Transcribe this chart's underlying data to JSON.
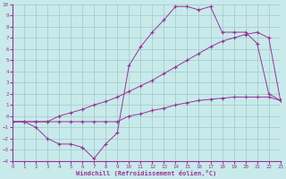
{
  "background_color": "#c8eaea",
  "grid_color": "#a0c8c8",
  "line_color": "#993399",
  "xlabel": "Windchill (Refroidissement éolien,°C)",
  "xlim": [
    0,
    23
  ],
  "ylim": [
    -4,
    10
  ],
  "xticks": [
    0,
    1,
    2,
    3,
    4,
    5,
    6,
    7,
    8,
    9,
    10,
    11,
    12,
    13,
    14,
    15,
    16,
    17,
    18,
    19,
    20,
    21,
    22,
    23
  ],
  "yticks": [
    -4,
    -3,
    -2,
    -1,
    0,
    1,
    2,
    3,
    4,
    5,
    6,
    7,
    8,
    9,
    10
  ],
  "curve1_x": [
    0,
    1,
    2,
    3,
    4,
    5,
    6,
    7,
    8,
    9,
    10,
    11,
    12,
    13,
    14,
    15,
    16,
    17,
    18,
    19,
    20,
    21,
    22,
    23
  ],
  "curve1_y": [
    -0.5,
    -0.5,
    -0.5,
    -0.5,
    -0.5,
    -0.5,
    -0.5,
    -0.5,
    -0.5,
    -0.5,
    0.0,
    0.2,
    0.5,
    0.7,
    1.0,
    1.2,
    1.4,
    1.5,
    1.6,
    1.7,
    1.7,
    1.7,
    1.7,
    1.4
  ],
  "curve2_x": [
    0,
    1,
    2,
    3,
    4,
    5,
    6,
    7,
    8,
    9,
    10,
    11,
    12,
    13,
    14,
    15,
    16,
    17,
    18,
    19,
    20,
    21,
    22,
    23
  ],
  "curve2_y": [
    -0.5,
    -0.5,
    -0.5,
    -0.5,
    0.0,
    0.3,
    0.6,
    1.0,
    1.3,
    1.7,
    2.2,
    2.7,
    3.2,
    3.8,
    4.4,
    5.0,
    5.6,
    6.2,
    6.7,
    7.0,
    7.3,
    7.5,
    7.0,
    1.4
  ],
  "curve3_x": [
    0,
    1,
    2,
    3,
    4,
    5,
    6,
    7,
    8,
    9,
    10,
    11,
    12,
    13,
    14,
    15,
    16,
    17,
    18,
    19,
    20,
    21,
    22,
    23
  ],
  "curve3_y": [
    -0.5,
    -0.5,
    -1.0,
    -2.0,
    -2.5,
    -2.5,
    -2.8,
    -3.8,
    -2.5,
    -1.5,
    4.5,
    6.2,
    7.5,
    8.6,
    9.8,
    9.8,
    9.5,
    9.8,
    7.5,
    7.5,
    7.5,
    6.5,
    2.0,
    1.4
  ]
}
